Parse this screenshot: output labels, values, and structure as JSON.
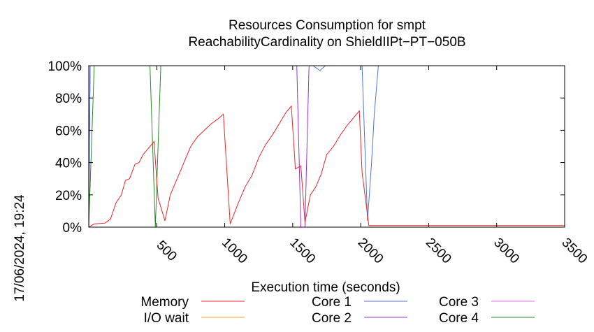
{
  "chart_data": {
    "type": "line",
    "title_line1": "Resources Consumption for smpt",
    "title_line2": "ReachabilityCardinality on ShieldIIPt−PT−050B",
    "xlabel": "Execution time (seconds)",
    "ylabel": "",
    "timestamp": "17/06/2024, 19:24",
    "xlim": [
      0,
      3500
    ],
    "ylim": [
      0,
      100
    ],
    "x_ticks": [
      "500",
      "1000",
      "1500",
      "2000",
      "2500",
      "3000",
      "3500"
    ],
    "x_tick_values": [
      500,
      1000,
      1500,
      2000,
      2500,
      3000,
      3500
    ],
    "y_ticks": [
      "0%",
      "20%",
      "40%",
      "60%",
      "80%",
      "100%"
    ],
    "y_tick_values": [
      0,
      20,
      40,
      60,
      80,
      100
    ],
    "grid": false,
    "legend_position": "bottom",
    "series": [
      {
        "name": "Memory",
        "color": "#e8262a",
        "points": [
          [
            0,
            0
          ],
          [
            40,
            2
          ],
          [
            120,
            2.5
          ],
          [
            160,
            5
          ],
          [
            200,
            15
          ],
          [
            240,
            20
          ],
          [
            270,
            29
          ],
          [
            300,
            30
          ],
          [
            340,
            39
          ],
          [
            370,
            40
          ],
          [
            400,
            45
          ],
          [
            450,
            50
          ],
          [
            480,
            53
          ],
          [
            510,
            18
          ],
          [
            560,
            4
          ],
          [
            600,
            20
          ],
          [
            700,
            40
          ],
          [
            750,
            50
          ],
          [
            800,
            56
          ],
          [
            850,
            60
          ],
          [
            900,
            64
          ],
          [
            950,
            67
          ],
          [
            990,
            70
          ],
          [
            1040,
            2
          ],
          [
            1100,
            15
          ],
          [
            1150,
            25
          ],
          [
            1200,
            32
          ],
          [
            1250,
            43
          ],
          [
            1300,
            51
          ],
          [
            1350,
            57
          ],
          [
            1400,
            64
          ],
          [
            1450,
            71
          ],
          [
            1490,
            75
          ],
          [
            1520,
            36
          ],
          [
            1560,
            38
          ],
          [
            1590,
            3
          ],
          [
            1630,
            20
          ],
          [
            1670,
            25
          ],
          [
            1710,
            33
          ],
          [
            1750,
            45
          ],
          [
            1800,
            50
          ],
          [
            1850,
            57
          ],
          [
            1900,
            63
          ],
          [
            1950,
            68
          ],
          [
            1990,
            72
          ],
          [
            2010,
            34
          ],
          [
            2060,
            1
          ],
          [
            2500,
            1
          ],
          [
            3500,
            1
          ]
        ]
      },
      {
        "name": "I/O wait",
        "color": "#f5a623",
        "points": [
          [
            0,
            0
          ],
          [
            3500,
            0
          ]
        ]
      },
      {
        "name": "Core 1",
        "color": "#4f74d6",
        "points": [
          [
            0,
            0
          ],
          [
            10,
            100
          ],
          [
            1650,
            100
          ],
          [
            1700,
            97
          ],
          [
            1740,
            100
          ],
          [
            2010,
            100
          ],
          [
            2050,
            4
          ],
          [
            2080,
            40
          ],
          [
            2100,
            70
          ],
          [
            2130,
            100
          ],
          [
            3500,
            100
          ]
        ]
      },
      {
        "name": "Core 2",
        "color": "#9b30d9",
        "points": [
          [
            0,
            0
          ],
          [
            10,
            100
          ],
          [
            1530,
            100
          ],
          [
            1560,
            0
          ],
          [
            1590,
            0
          ],
          [
            1620,
            100
          ],
          [
            3500,
            100
          ]
        ]
      },
      {
        "name": "Core 3",
        "color": "#e36ef0",
        "points": [
          [
            0,
            0
          ],
          [
            10,
            100
          ],
          [
            3500,
            100
          ]
        ]
      },
      {
        "name": "Core 4",
        "color": "#2a8a2a",
        "points": [
          [
            0,
            0
          ],
          [
            40,
            100
          ],
          [
            450,
            100
          ],
          [
            490,
            0
          ],
          [
            530,
            100
          ],
          [
            3500,
            100
          ]
        ]
      }
    ]
  }
}
